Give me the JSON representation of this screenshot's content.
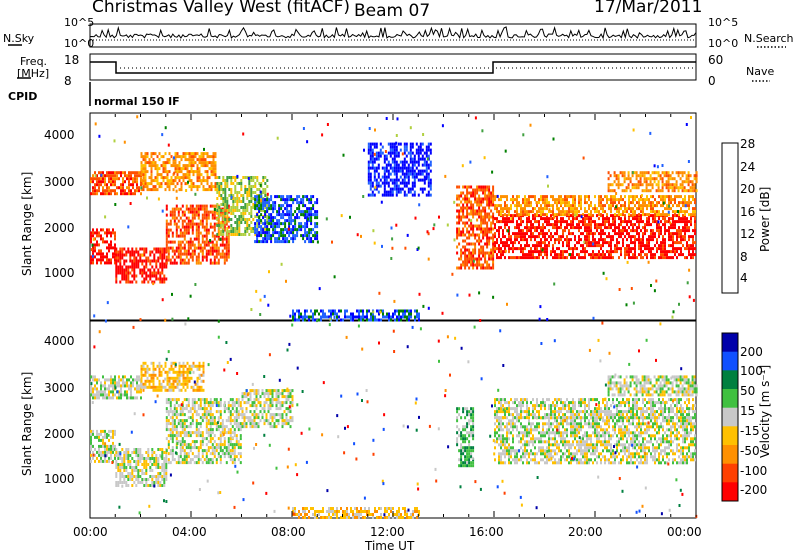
{
  "header": {
    "station": "Christmas Valley West (fitACF)",
    "beam": "Beam 07",
    "date": "17/Mar/2011"
  },
  "noise_panel": {
    "left_label": "N.Sky",
    "right_label": "N.Search",
    "ticks_left": [
      "10^5",
      "10^0"
    ],
    "ticks_right": [
      "10^5",
      "10^0"
    ]
  },
  "freq_panel": {
    "left_label_1": "Freq.",
    "left_label_2": "[MHz]",
    "ticks_left": [
      "18",
      "8"
    ],
    "right_label": "Nave",
    "ticks_right": [
      "60",
      "0"
    ]
  },
  "cpid": {
    "label": "CPID",
    "value": "normal 150 IF"
  },
  "colors": {
    "power": [
      "#0000ff",
      "#2060ff",
      "#008000",
      "#40a040",
      "#b0d040",
      "#ffc000",
      "#ff9000",
      "#ff5000",
      "#ff0000"
    ],
    "velocity": [
      "#0000aa",
      "#1050ff",
      "#008040",
      "#40c040",
      "#c8c8c8",
      "#ffc000",
      "#ff9000",
      "#ff4000",
      "#ff0000"
    ]
  },
  "chart_data": [
    {
      "type": "heatmap",
      "name": "power",
      "ylabel": "Slant Range [km]",
      "yticks": [
        "4000",
        "3000",
        "2000",
        "1000"
      ],
      "ylim": [
        180,
        4500
      ],
      "xlim_hours": [
        0,
        24
      ],
      "colorbar_label": "Power [dB]",
      "colorbar_ticks": [
        "28",
        "24",
        "20",
        "16",
        "12",
        "8",
        "4"
      ],
      "bands": [
        {
          "t0": 0.0,
          "t1": 1.0,
          "r0": 1400,
          "r1": 2100,
          "level": 8
        },
        {
          "t0": 1.0,
          "t1": 3.0,
          "r0": 1000,
          "r1": 1700,
          "level": 8
        },
        {
          "t0": 3.0,
          "t1": 5.5,
          "r0": 1400,
          "r1": 2600,
          "level": 7
        },
        {
          "t0": 0.0,
          "t1": 2.0,
          "r0": 2800,
          "r1": 3300,
          "level": 7
        },
        {
          "t0": 2.0,
          "t1": 5.0,
          "r0": 2900,
          "r1": 3700,
          "level": 6
        },
        {
          "t0": 5.0,
          "t1": 7.0,
          "r0": 2000,
          "r1": 3200,
          "level": 4
        },
        {
          "t0": 6.5,
          "t1": 9.0,
          "r0": 1800,
          "r1": 2800,
          "level": 1
        },
        {
          "t0": 8.0,
          "t1": 13.0,
          "r0": 200,
          "r1": 400,
          "level": 1
        },
        {
          "t0": 11.0,
          "t1": 13.5,
          "r0": 2800,
          "r1": 3900,
          "level": 0
        },
        {
          "t0": 14.5,
          "t1": 16.0,
          "r0": 1300,
          "r1": 3000,
          "level": 7
        },
        {
          "t0": 16.0,
          "t1": 24.0,
          "r0": 1500,
          "r1": 2400,
          "level": 8
        },
        {
          "t0": 16.0,
          "t1": 24.0,
          "r0": 2400,
          "r1": 2800,
          "level": 6
        },
        {
          "t0": 20.5,
          "t1": 24.0,
          "r0": 2900,
          "r1": 3300,
          "level": 6
        }
      ]
    },
    {
      "type": "heatmap",
      "name": "velocity",
      "xlabel": "Time UT",
      "ylabel": "Slant Range [km]",
      "yticks": [
        "4000",
        "3000",
        "2000",
        "1000"
      ],
      "xticks": [
        "00:00",
        "04:00",
        "08:00",
        "12:00",
        "16:00",
        "20:00",
        "00:00"
      ],
      "ylim": [
        180,
        4500
      ],
      "xlim_hours": [
        0,
        24
      ],
      "colorbar_label": "Velocity [m s⁻¹]",
      "colorbar_ticks": [
        "200",
        "100",
        "50",
        "15",
        "-15",
        "-50",
        "-100",
        "-200"
      ],
      "bands": [
        {
          "t0": 0.0,
          "t1": 1.0,
          "r0": 1400,
          "r1": 2100,
          "level": 4
        },
        {
          "t0": 1.0,
          "t1": 3.0,
          "r0": 900,
          "r1": 1700,
          "level": 4
        },
        {
          "t0": 3.0,
          "t1": 6.0,
          "r0": 1400,
          "r1": 2800,
          "level": 4
        },
        {
          "t0": 0.0,
          "t1": 2.0,
          "r0": 2800,
          "r1": 3300,
          "level": 4
        },
        {
          "t0": 2.0,
          "t1": 4.5,
          "r0": 3000,
          "r1": 3600,
          "level": 5
        },
        {
          "t0": 6.0,
          "t1": 8.0,
          "r0": 2200,
          "r1": 3000,
          "level": 4
        },
        {
          "t0": 8.0,
          "t1": 13.0,
          "r0": 200,
          "r1": 400,
          "level": 5
        },
        {
          "t0": 14.5,
          "t1": 15.2,
          "r0": 1300,
          "r1": 2600,
          "level": 3
        },
        {
          "t0": 16.0,
          "t1": 24.0,
          "r0": 1400,
          "r1": 2400,
          "level": 4
        },
        {
          "t0": 16.0,
          "t1": 24.0,
          "r0": 2400,
          "r1": 2800,
          "level": 4
        },
        {
          "t0": 20.5,
          "t1": 24.0,
          "r0": 2900,
          "r1": 3300,
          "level": 4
        }
      ]
    }
  ]
}
